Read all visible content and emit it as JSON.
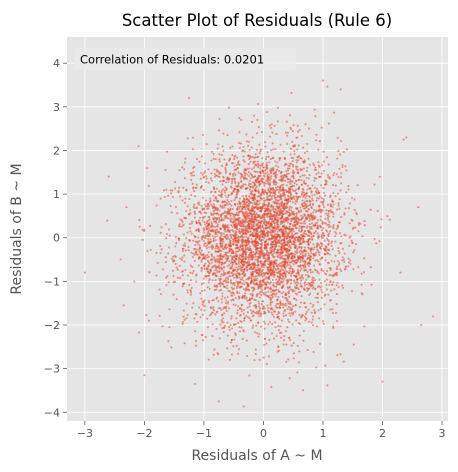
{
  "chart_data": {
    "type": "scatter",
    "title": "Scatter Plot of Residuals (Rule 6)",
    "xlabel": "Residuals of A ~ M",
    "ylabel": "Residuals of B ~ M",
    "xlim": [
      -3.3,
      3.1
    ],
    "ylim": [
      -4.2,
      4.6
    ],
    "xticks": [
      -3,
      -2,
      -1,
      0,
      1,
      2,
      3
    ],
    "yticks": [
      -4,
      -3,
      -2,
      -1,
      0,
      1,
      2,
      3,
      4
    ],
    "xtick_labels": [
      "−3",
      "−2",
      "−1",
      "0",
      "1",
      "2",
      "3"
    ],
    "ytick_labels": [
      "−4",
      "−3",
      "−2",
      "−1",
      "0",
      "1",
      "2",
      "3",
      "4"
    ],
    "grid": true,
    "annotation": "Correlation of Residuals: 0.0201",
    "annotation_position": "top-left",
    "correlation": 0.0201,
    "x_stdev": 0.65,
    "y_stdev": 1.0,
    "point_count_estimate": 5000,
    "extreme_points": [
      {
        "x": -3.0,
        "y": -0.8
      },
      {
        "x": 2.85,
        "y": -1.8
      },
      {
        "x": 2.65,
        "y": -2.0
      },
      {
        "x": 2.0,
        "y": -3.3
      },
      {
        "x": -2.0,
        "y": -3.15
      },
      {
        "x": -1.15,
        "y": -3.35
      },
      {
        "x": -0.75,
        "y": -3.75
      },
      {
        "x": 1.3,
        "y": 3.4
      },
      {
        "x": -1.25,
        "y": 3.2
      },
      {
        "x": 1.0,
        "y": 3.6
      },
      {
        "x": 2.4,
        "y": 2.3
      },
      {
        "x": -2.6,
        "y": 1.4
      },
      {
        "x": -2.3,
        "y": 0.7
      },
      {
        "x": 2.6,
        "y": 0.7
      },
      {
        "x": 2.3,
        "y": -0.8
      },
      {
        "x": -2.4,
        "y": -0.5
      }
    ],
    "colors": {
      "points": "#E24A33",
      "plot_background": "#E5E5E5",
      "grid": "#FFFFFF"
    }
  }
}
